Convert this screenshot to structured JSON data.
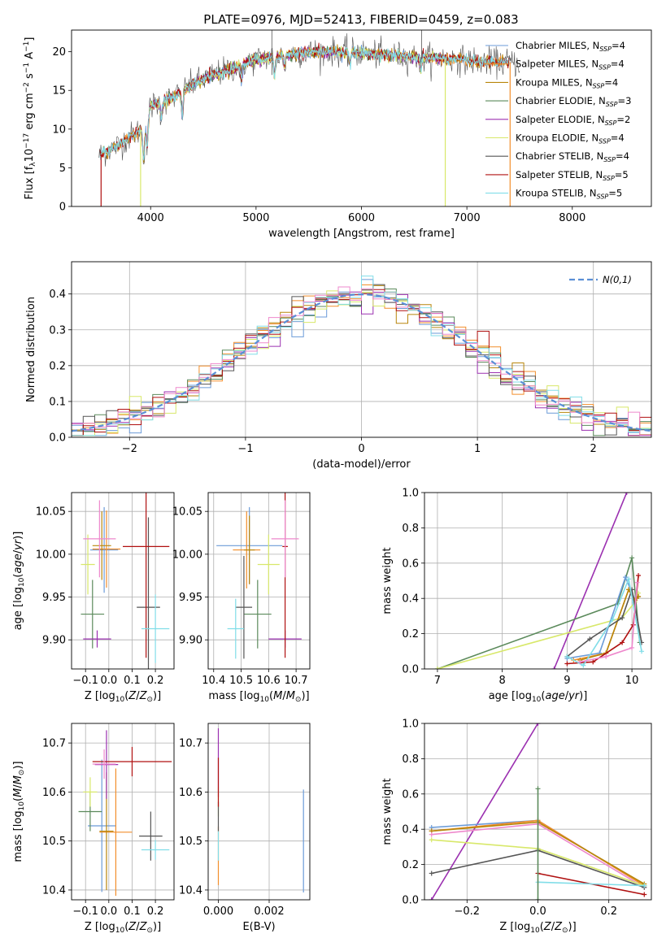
{
  "figure": {
    "title": "PLATE=0976, MJD=52413, FIBERID=0459, z=0.083"
  },
  "colors": {
    "Chabrier MILES": "#6b9bd8",
    "Salpeter MILES": "#f28e2b",
    "Kroupa MILES": "#b8860b",
    "Chabrier ELODIE": "#5b8a5b",
    "Salpeter ELODIE": "#9b30b0",
    "Kroupa ELODIE": "#d8e86a",
    "Chabrier STELIB": "#555555",
    "Salpeter STELIB": "#b01010",
    "Kroupa STELIB": "#80dde8",
    "Pink": "#ee88cc",
    "Normal": "#5a8fd6"
  },
  "chart_data": [
    {
      "id": "spectrum",
      "type": "line",
      "title": "PLATE=0976, MJD=52413, FIBERID=0459, z=0.083",
      "xlabel": "wavelength [Angstrom, rest frame]",
      "ylabel": "Flux [f_λ 10^-17 erg cm^-2 s^-1 A^-1]",
      "xlim": [
        3250,
        8750
      ],
      "ylim": [
        0,
        22.8
      ],
      "xticks": [
        "4000",
        "5000",
        "6000",
        "7000",
        "8000"
      ],
      "yticks": [
        "0",
        "5",
        "10",
        "15",
        "20"
      ],
      "grid": false,
      "legend_position": "top-right",
      "legend": [
        {
          "name": "Chabrier MILES",
          "label": "Chabrier MILES, N",
          "sub": "SSP",
          "tail": "=4"
        },
        {
          "name": "Salpeter MILES",
          "label": "Salpeter MILES, N",
          "sub": "SSP",
          "tail": "=4"
        },
        {
          "name": "Kroupa MILES",
          "label": "Kroupa MILES, N",
          "sub": "SSP",
          "tail": "=4"
        },
        {
          "name": "Chabrier ELODIE",
          "label": "Chabrier ELODIE, N",
          "sub": "SSP",
          "tail": "=3"
        },
        {
          "name": "Salpeter ELODIE",
          "label": "Salpeter ELODIE, N",
          "sub": "SSP",
          "tail": "=2"
        },
        {
          "name": "Kroupa ELODIE",
          "label": "Kroupa ELODIE, N",
          "sub": "SSP",
          "tail": "=4"
        },
        {
          "name": "Chabrier STELIB",
          "label": "Chabrier STELIB, N",
          "sub": "SSP",
          "tail": "=4"
        },
        {
          "name": "Salpeter STELIB",
          "label": "Salpeter STELIB, N",
          "sub": "SSP",
          "tail": "=5"
        },
        {
          "name": "Kroupa STELIB",
          "label": "Kroupa STELIB, N",
          "sub": "SSP",
          "tail": "=5"
        }
      ],
      "continuum": [
        [
          3500,
          6.5
        ],
        [
          3700,
          8.0
        ],
        [
          3850,
          9.5
        ],
        [
          3950,
          10.2
        ],
        [
          4000,
          13.0
        ],
        [
          4200,
          14.0
        ],
        [
          4400,
          15.8
        ],
        [
          4600,
          17.0
        ],
        [
          4800,
          18.0
        ],
        [
          5000,
          19.0
        ],
        [
          5200,
          19.5
        ],
        [
          5400,
          19.8
        ],
        [
          5600,
          20.0
        ],
        [
          5800,
          20.0
        ],
        [
          6000,
          19.8
        ],
        [
          6200,
          19.6
        ],
        [
          6500,
          19.3
        ],
        [
          6800,
          19.1
        ],
        [
          7000,
          18.9
        ],
        [
          7200,
          18.7
        ],
        [
          7500,
          18.6
        ]
      ]
    },
    {
      "id": "residuals",
      "type": "step",
      "xlabel": "(data-model)/error",
      "ylabel": "Normed distribution",
      "xlim": [
        -2.5,
        2.5
      ],
      "ylim": [
        0,
        0.49
      ],
      "xticks": [
        "−2",
        "−1",
        "0",
        "1",
        "2"
      ],
      "yticks": [
        "0.0",
        "0.1",
        "0.2",
        "0.3",
        "0.4"
      ],
      "grid": true,
      "legend_position": "top-right",
      "reference_label": "N(0,1)",
      "bin_width": 0.1
    },
    {
      "id": "age_vs_Z",
      "type": "errorbar",
      "xlabel": "Z [log10(Z/Z⊙)]",
      "ylabel": "age [log10(age/yr)]",
      "xlim": [
        -0.16,
        0.28
      ],
      "ylim": [
        9.866,
        10.072
      ],
      "xticks": [
        "−0.1",
        "0.0",
        "0.1",
        "0.2"
      ],
      "yticks": [
        "9.90",
        "9.95",
        "10.00",
        "10.05"
      ],
      "grid": true,
      "points": [
        {
          "model": "Chabrier MILES",
          "x": -0.02,
          "y": 10.005,
          "xerr": 0.06,
          "yerr": 0.05
        },
        {
          "model": "Salpeter MILES",
          "x": -0.01,
          "y": 10.006,
          "xerr": 0.06,
          "yerr": 0.045
        },
        {
          "model": "Kroupa MILES",
          "x": -0.03,
          "y": 10.01,
          "xerr": 0.04,
          "yerr": 0.04
        },
        {
          "model": "Chabrier ELODIE",
          "x": -0.07,
          "y": 9.93,
          "xerr": 0.05,
          "yerr": 0.04
        },
        {
          "model": "Salpeter ELODIE",
          "x": -0.05,
          "y": 9.901,
          "xerr": 0.06,
          "yerr": 0.01
        },
        {
          "model": "Kroupa ELODIE",
          "x": -0.09,
          "y": 9.988,
          "xerr": 0.03,
          "yerr": 0.035
        },
        {
          "model": "Chabrier STELIB",
          "x": 0.17,
          "y": 9.938,
          "xerr": 0.05,
          "yerr": 0.105
        },
        {
          "model": "Salpeter STELIB",
          "x": 0.16,
          "y": 10.009,
          "xerr": 0.1,
          "yerr": 0.13
        },
        {
          "model": "Kroupa STELIB",
          "x": 0.2,
          "y": 9.913,
          "xerr": 0.06,
          "yerr": 0.04
        },
        {
          "model": "Pink",
          "x": -0.04,
          "y": 10.018,
          "xerr": 0.07,
          "yerr": 0.045
        }
      ]
    },
    {
      "id": "age_vs_mass",
      "type": "errorbar",
      "xlabel": "mass [log10(M/M⊙)]",
      "ylabel": "",
      "xlim": [
        10.38,
        10.75
      ],
      "ylim": [
        9.866,
        10.072
      ],
      "xticks": [
        "10.4",
        "10.5",
        "10.6",
        "10.7"
      ],
      "yticks": [
        "9.90",
        "9.95",
        "10.00",
        "10.05"
      ],
      "grid": true,
      "points": [
        {
          "model": "Chabrier MILES",
          "x": 10.53,
          "y": 10.01,
          "xerr": 0.12,
          "yerr": 0.045
        },
        {
          "model": "Salpeter MILES",
          "x": 10.52,
          "y": 10.005,
          "xerr": 0.05,
          "yerr": 0.045
        },
        {
          "model": "Kroupa MILES",
          "x": 10.53,
          "y": 10.005,
          "xerr": 0.02,
          "yerr": 0.04
        },
        {
          "model": "Chabrier ELODIE",
          "x": 10.56,
          "y": 9.93,
          "xerr": 0.05,
          "yerr": 0.04
        },
        {
          "model": "Salpeter ELODIE",
          "x": 10.66,
          "y": 9.901,
          "xerr": 0.06,
          "yerr": 0.01
        },
        {
          "model": "Kroupa ELODIE",
          "x": 10.6,
          "y": 9.988,
          "xerr": 0.04,
          "yerr": 0.035
        },
        {
          "model": "Chabrier STELIB",
          "x": 10.51,
          "y": 9.938,
          "xerr": 0.03,
          "yerr": 0.06
        },
        {
          "model": "Salpeter STELIB",
          "x": 10.66,
          "y": 10.009,
          "xerr": 0.01,
          "yerr": 0.13
        },
        {
          "model": "Kroupa STELIB",
          "x": 10.48,
          "y": 9.913,
          "xerr": 0.03,
          "yerr": 0.035
        },
        {
          "model": "Pink",
          "x": 10.66,
          "y": 10.018,
          "xerr": 0.05,
          "yerr": 0.045
        }
      ]
    },
    {
      "id": "weight_vs_age",
      "type": "line",
      "xlabel": "age [log10(age/yr)]",
      "ylabel": "mass weight",
      "xlim": [
        6.8,
        10.3
      ],
      "ylim": [
        0,
        1.0
      ],
      "xticks": [
        "7",
        "8",
        "9",
        "10"
      ],
      "yticks": [
        "0.0",
        "0.2",
        "0.4",
        "0.6",
        "0.8",
        "1.0"
      ],
      "grid": true,
      "series": [
        {
          "model": "Salpeter ELODIE",
          "x": [
            8.8,
            9.92
          ],
          "y": [
            0.0,
            1.0
          ]
        },
        {
          "model": "Chabrier ELODIE",
          "x": [
            7.0,
            9.78,
            10.0,
            10.12
          ],
          "y": [
            0.0,
            0.37,
            0.63,
            0.15
          ]
        },
        {
          "model": "Kroupa ELODIE",
          "x": [
            7.0,
            9.85,
            10.05,
            10.1
          ],
          "y": [
            0.0,
            0.29,
            0.38,
            0.43
          ]
        },
        {
          "model": "Chabrier MILES",
          "x": [
            9.0,
            9.5,
            9.9,
            10.05,
            10.1
          ],
          "y": [
            0.06,
            0.09,
            0.52,
            0.39,
            0.41
          ]
        },
        {
          "model": "Salpeter MILES",
          "x": [
            9.1,
            9.6,
            9.95,
            10.05,
            10.1
          ],
          "y": [
            0.05,
            0.09,
            0.45,
            0.39,
            0.41
          ]
        },
        {
          "model": "Kroupa MILES",
          "x": [
            9.2,
            9.6,
            9.95,
            10.05,
            10.1
          ],
          "y": [
            0.05,
            0.09,
            0.45,
            0.39,
            0.41
          ]
        },
        {
          "model": "Chabrier STELIB",
          "x": [
            9.0,
            9.35,
            9.85,
            10.0,
            10.15
          ],
          "y": [
            0.07,
            0.17,
            0.29,
            0.45,
            0.15
          ]
        },
        {
          "model": "Salpeter STELIB",
          "x": [
            9.0,
            9.4,
            9.85,
            10.02,
            10.1
          ],
          "y": [
            0.03,
            0.04,
            0.15,
            0.25,
            0.53
          ]
        },
        {
          "model": "Kroupa STELIB",
          "x": [
            9.0,
            9.25,
            9.7,
            9.95,
            10.15
          ],
          "y": [
            0.07,
            0.02,
            0.28,
            0.51,
            0.1
          ]
        },
        {
          "model": "Pink",
          "x": [
            9.2,
            9.6,
            10.0,
            10.08
          ],
          "y": [
            0.04,
            0.07,
            0.12,
            0.49
          ]
        }
      ]
    },
    {
      "id": "mass_vs_Z",
      "type": "errorbar",
      "xlabel": "Z [log10(Z/Z⊙)]",
      "ylabel": "mass [log10(M/M⊙)]",
      "xlim": [
        -0.16,
        0.28
      ],
      "ylim": [
        10.38,
        10.74
      ],
      "xticks": [
        "−0.1",
        "0.0",
        "0.1",
        "0.2"
      ],
      "yticks": [
        "10.4",
        "10.5",
        "10.6",
        "10.7"
      ],
      "grid": true,
      "points": [
        {
          "model": "Chabrier MILES",
          "x": -0.03,
          "y": 10.531,
          "xerr": 0.06,
          "yerr": 0.135
        },
        {
          "model": "Salpeter MILES",
          "x": 0.03,
          "y": 10.518,
          "xerr": 0.07,
          "yerr": 0.13
        },
        {
          "model": "Kroupa MILES",
          "x": -0.01,
          "y": 10.52,
          "xerr": 0.03,
          "yerr": 0.12
        },
        {
          "model": "Chabrier ELODIE",
          "x": -0.08,
          "y": 10.56,
          "xerr": 0.05,
          "yerr": 0.04
        },
        {
          "model": "Salpeter ELODIE",
          "x": -0.01,
          "y": 10.656,
          "xerr": 0.05,
          "yerr": 0.07
        },
        {
          "model": "Kroupa ELODIE",
          "x": -0.08,
          "y": 10.6,
          "xerr": 0.03,
          "yerr": 0.03
        },
        {
          "model": "Chabrier STELIB",
          "x": 0.18,
          "y": 10.51,
          "xerr": 0.05,
          "yerr": 0.05
        },
        {
          "model": "Salpeter STELIB",
          "x": 0.1,
          "y": 10.662,
          "xerr": 0.17,
          "yerr": 0.03
        },
        {
          "model": "Kroupa STELIB",
          "x": 0.2,
          "y": 10.482,
          "xerr": 0.06,
          "yerr": 0.02
        },
        {
          "model": "Pink",
          "x": -0.02,
          "y": 10.657,
          "xerr": 0.05,
          "yerr": 0.03
        }
      ]
    },
    {
      "id": "mass_vs_ebv",
      "type": "errorbar",
      "xlabel": "E(B-V)",
      "ylabel": "",
      "xlim": [
        -0.0004,
        0.0036
      ],
      "ylim": [
        10.38,
        10.74
      ],
      "xticks": [
        "0.000",
        "0.002"
      ],
      "yticks": [
        "10.4",
        "10.5",
        "10.6",
        "10.7"
      ],
      "grid": true,
      "points": [
        {
          "model": "Chabrier MILES",
          "x": 0.00335,
          "y": 10.5,
          "xerr": 0,
          "yerr": 0.105
        },
        {
          "model": "Salpeter MILES",
          "x": 0.0,
          "y": 10.47,
          "xerr": 0,
          "yerr": 0.06
        },
        {
          "model": "Salpeter ELODIE",
          "x": 0.0,
          "y": 10.66,
          "xerr": 0,
          "yerr": 0.07
        },
        {
          "model": "Kroupa ELODIE",
          "x": 0.0,
          "y": 10.58,
          "xerr": 0,
          "yerr": 0.03
        },
        {
          "model": "Chabrier STELIB",
          "x": 0.0,
          "y": 10.55,
          "xerr": 0,
          "yerr": 0.03
        },
        {
          "model": "Salpeter STELIB",
          "x": 0.0,
          "y": 10.62,
          "xerr": 0,
          "yerr": 0.05
        },
        {
          "model": "Kroupa STELIB",
          "x": 0.0,
          "y": 10.49,
          "xerr": 0,
          "yerr": 0.03
        }
      ]
    },
    {
      "id": "weight_vs_Z",
      "type": "line",
      "xlabel": "Z [log10(Z/Z⊙)]",
      "ylabel": "mass weight",
      "xlim": [
        -0.32,
        0.32
      ],
      "ylim": [
        0,
        1.0
      ],
      "xticks": [
        "−0.2",
        "0.0",
        "0.2"
      ],
      "yticks": [
        "0.0",
        "0.2",
        "0.4",
        "0.6",
        "0.8",
        "1.0"
      ],
      "grid": true,
      "series": [
        {
          "model": "Salpeter ELODIE",
          "x": [
            -0.3,
            0.0
          ],
          "y": [
            0.0,
            1.0
          ]
        },
        {
          "model": "Chabrier MILES",
          "x": [
            -0.3,
            0.0,
            0.3
          ],
          "y": [
            0.41,
            0.45,
            0.08
          ]
        },
        {
          "model": "Salpeter MILES",
          "x": [
            -0.3,
            0.0,
            0.3
          ],
          "y": [
            0.39,
            0.45,
            0.08
          ]
        },
        {
          "model": "Kroupa MILES",
          "x": [
            -0.3,
            0.0,
            0.3
          ],
          "y": [
            0.39,
            0.44,
            0.09
          ]
        },
        {
          "model": "Pink",
          "x": [
            -0.3,
            0.0,
            0.3
          ],
          "y": [
            0.37,
            0.43,
            0.07
          ]
        },
        {
          "model": "Kroupa ELODIE",
          "x": [
            -0.3,
            0.0,
            0.3
          ],
          "y": [
            0.34,
            0.29,
            0.08
          ]
        },
        {
          "model": "Chabrier STELIB",
          "x": [
            -0.3,
            0.0,
            0.3
          ],
          "y": [
            0.15,
            0.28,
            0.07
          ]
        },
        {
          "model": "Salpeter STELIB",
          "x": [
            0.0,
            0.3
          ],
          "y": [
            0.15,
            0.03
          ]
        },
        {
          "model": "Kroupa STELIB",
          "x": [
            0.0,
            0.3
          ],
          "y": [
            0.1,
            0.08
          ]
        },
        {
          "model": "Chabrier ELODIE",
          "x": [
            0.0,
            0.0
          ],
          "y": [
            0.0,
            0.63
          ]
        }
      ]
    }
  ]
}
